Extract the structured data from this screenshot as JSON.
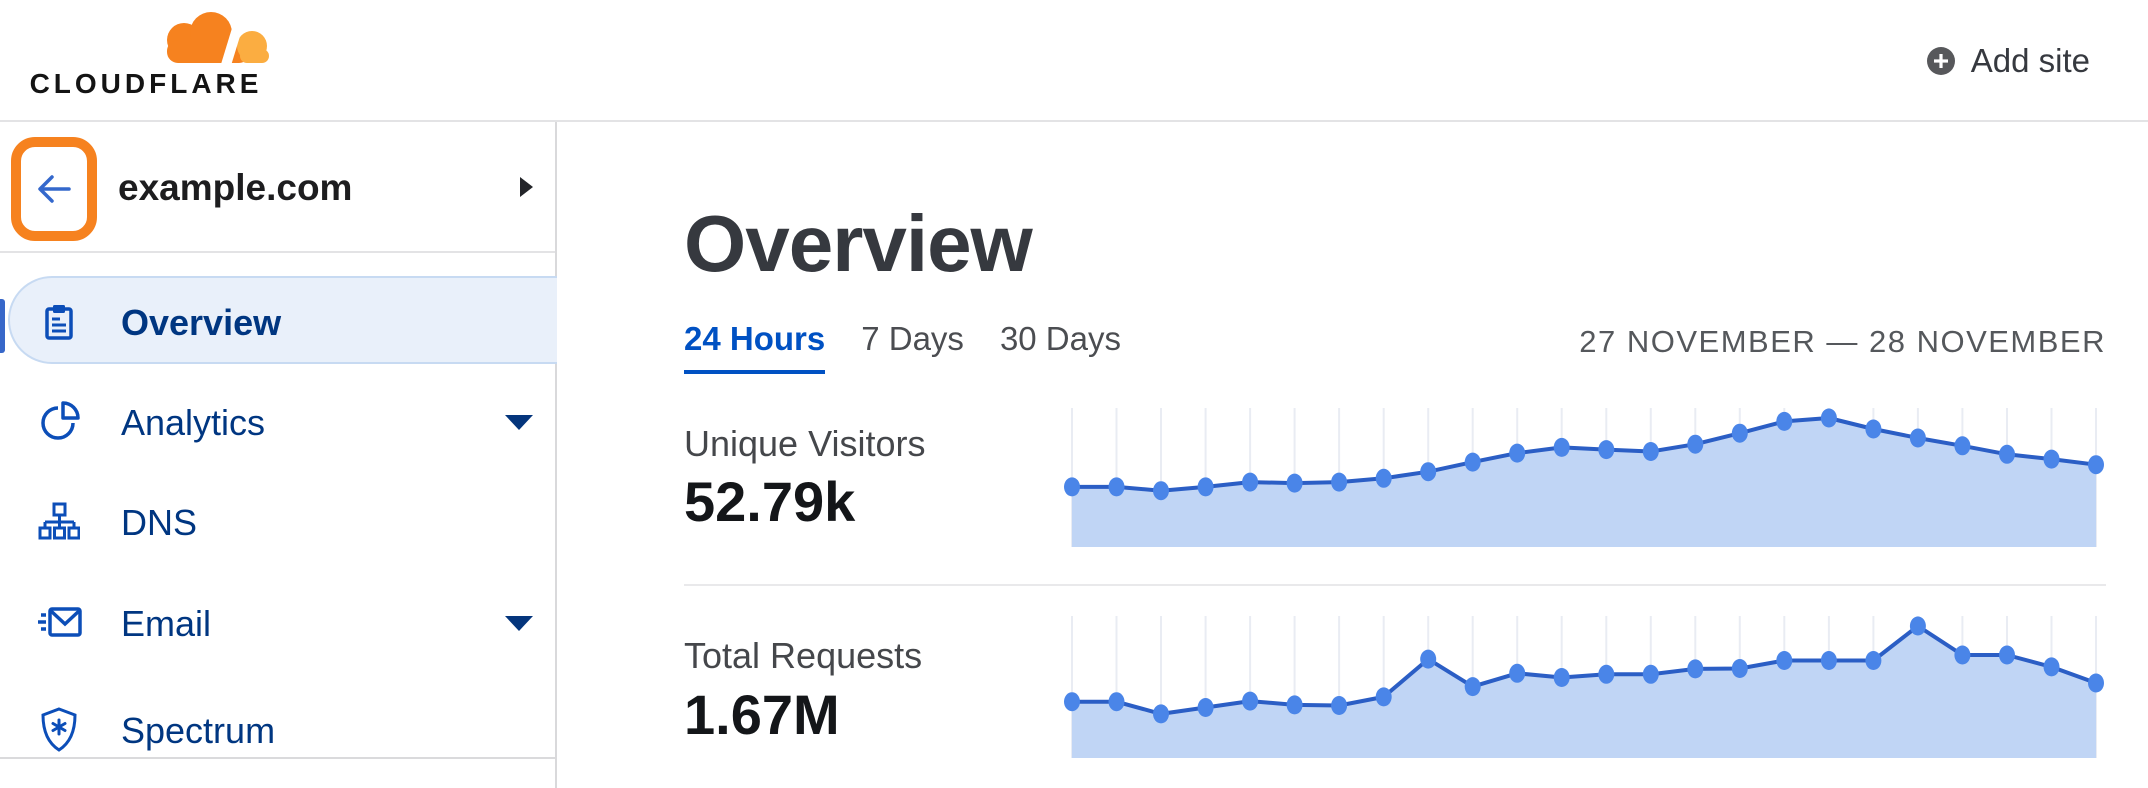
{
  "header": {
    "logo_text": "CLOUDFLARE",
    "logo_icon": "cloudflare-cloud-icon",
    "add_site_label": "Add site",
    "add_site_icon": "plus-circle-icon"
  },
  "sidebar": {
    "site_name": "example.com",
    "back_icon": "back-arrow-icon",
    "expand_icon": "chevron-right-icon",
    "back_button_highlight_color": "#f6821f",
    "items": [
      {
        "label": "Overview",
        "icon": "clipboard-icon",
        "active": true,
        "expandable": false
      },
      {
        "label": "Analytics",
        "icon": "pie-chart-icon",
        "active": false,
        "expandable": true
      },
      {
        "label": "DNS",
        "icon": "sitemap-icon",
        "active": false,
        "expandable": false
      },
      {
        "label": "Email",
        "icon": "envelope-icon",
        "active": false,
        "expandable": true
      },
      {
        "label": "Spectrum",
        "icon": "shield-icon",
        "active": false,
        "expandable": false
      }
    ]
  },
  "main": {
    "title": "Overview",
    "tabs": [
      {
        "label": "24 Hours",
        "active": true
      },
      {
        "label": "7 Days",
        "active": false
      },
      {
        "label": "30 Days",
        "active": false
      }
    ],
    "date_range": "27 NOVEMBER — 28 NOVEMBER",
    "metrics": [
      {
        "label": "Unique Visitors",
        "value": "52.79k"
      },
      {
        "label": "Total Requests",
        "value": "1.67M"
      }
    ]
  },
  "colors": {
    "brand_orange": "#f6821f",
    "brand_orange_light": "#fbad41",
    "link_blue": "#0051c3",
    "nav_text_navy": "#003681",
    "icon_blue": "#0c4eb8",
    "border_gray": "#e3e3e5"
  },
  "chart_data": [
    {
      "type": "area",
      "title": "Unique Visitors",
      "total_shown": "52.79k",
      "period": "24 Hours",
      "x": [
        0,
        1,
        2,
        3,
        4,
        5,
        6,
        7,
        8,
        9,
        10,
        11,
        12,
        13,
        14,
        15,
        16,
        17,
        18,
        19,
        20,
        21,
        22,
        23
      ],
      "xlabel": "",
      "ylabel": "",
      "values": [
        1505,
        1505,
        1410,
        1505,
        1625,
        1600,
        1625,
        1720,
        1885,
        2125,
        2350,
        2495,
        2440,
        2390,
        2575,
        2850,
        3145,
        3230,
        2955,
        2730,
        2535,
        2320,
        2200,
        2060
      ],
      "ylim": [
        0,
        3300
      ],
      "axis_labels_shown": false,
      "legend": "none",
      "grid": "vertical-per-point",
      "line_color": "#2b5ec5",
      "fill_color": "#c0d5f5",
      "point_color": "#4a85e8",
      "grid_color": "#e9ecf3"
    },
    {
      "type": "area",
      "title": "Total Requests",
      "total_shown": "1.67M",
      "period": "24 Hours",
      "x": [
        0,
        1,
        2,
        3,
        4,
        5,
        6,
        7,
        8,
        9,
        10,
        11,
        12,
        13,
        14,
        15,
        16,
        17,
        18,
        19,
        20,
        21,
        22,
        23
      ],
      "xlabel": "",
      "ylabel": "",
      "values": [
        49300,
        49300,
        38600,
        44200,
        49800,
        46500,
        45900,
        53500,
        86500,
        62500,
        74100,
        70400,
        73200,
        73200,
        78000,
        78300,
        85300,
        85300,
        85300,
        115500,
        90100,
        90100,
        79700,
        65600
      ],
      "ylim": [
        0,
        120000
      ],
      "axis_labels_shown": false,
      "legend": "none",
      "grid": "vertical-per-point",
      "line_color": "#2b5ec5",
      "fill_color": "#c0d5f5",
      "point_color": "#4a85e8",
      "grid_color": "#e9ecf3"
    }
  ]
}
